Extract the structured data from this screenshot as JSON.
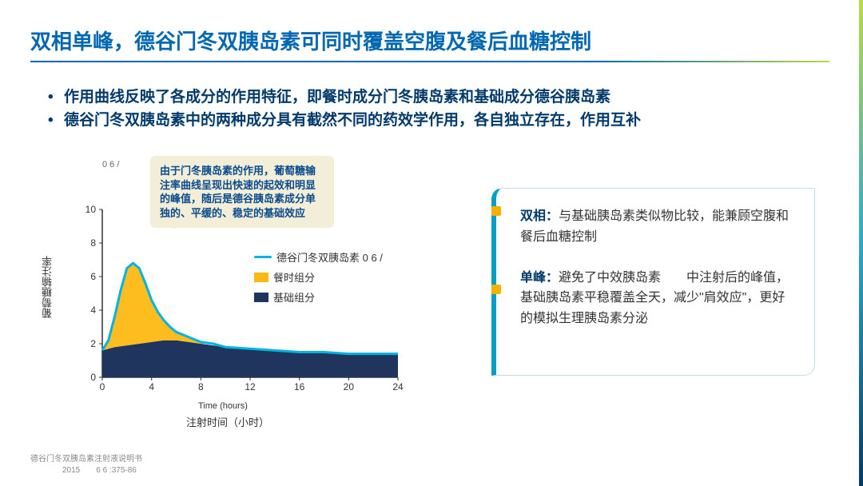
{
  "title": "双相单峰，德谷门冬双胰岛素可同时覆盖空腹及餐后血糖控制",
  "bullets": [
    "作用曲线反映了各成分的作用特征，即餐时成分门冬胰岛素和基础成分德谷胰岛素",
    "德谷门冬双胰岛素中的两种成分具有截然不同的药效学作用，各自独立存在，作用互补"
  ],
  "chart": {
    "type": "area",
    "top_label": "0 6  /",
    "y_label": "葡萄糖输注率",
    "x_label_en": "Time (hours)",
    "x_label_cn": "注射时间（小时）",
    "x_ticks": [
      0,
      4,
      8,
      12,
      16,
      20,
      24
    ],
    "y_ticks": [
      0,
      2,
      4,
      6,
      8,
      10
    ],
    "xlim": [
      0,
      24
    ],
    "ylim": [
      0,
      10
    ],
    "basal": {
      "color": "#1f355e",
      "points": [
        [
          0,
          1.6
        ],
        [
          1,
          1.8
        ],
        [
          2,
          1.9
        ],
        [
          3,
          2.0
        ],
        [
          4,
          2.1
        ],
        [
          5,
          2.2
        ],
        [
          6,
          2.2
        ],
        [
          7,
          2.1
        ],
        [
          8,
          2.0
        ],
        [
          10,
          1.8
        ],
        [
          12,
          1.7
        ],
        [
          14,
          1.6
        ],
        [
          16,
          1.5
        ],
        [
          18,
          1.5
        ],
        [
          20,
          1.4
        ],
        [
          22,
          1.4
        ],
        [
          24,
          1.4
        ]
      ]
    },
    "prandial": {
      "color": "#fdb913",
      "points": [
        [
          0,
          1.6
        ],
        [
          0.5,
          2.2
        ],
        [
          1,
          3.6
        ],
        [
          1.5,
          5.2
        ],
        [
          2,
          6.5
        ],
        [
          2.5,
          6.8
        ],
        [
          3,
          6.5
        ],
        [
          3.5,
          5.6
        ],
        [
          4,
          4.6
        ],
        [
          4.5,
          3.9
        ],
        [
          5,
          3.4
        ],
        [
          5.5,
          3.0
        ],
        [
          6,
          2.7
        ],
        [
          7,
          2.4
        ],
        [
          8,
          2.1
        ],
        [
          9,
          2.0
        ]
      ]
    },
    "total_line": {
      "color": "#00b3e3",
      "width": 3
    },
    "axis_color": "#333333",
    "tick_fontsize": 12,
    "callout": "由于门冬胰岛素的作用，葡萄糖输注率曲线呈现出快速的起效和明显的峰值，随后是德谷胰岛素成分单独的、平缓的、稳定的基础效应",
    "legend": {
      "line_label": "德谷门冬双胰岛素 0 6    /",
      "prandial_label": "餐时组分",
      "basal_label": "基础组分"
    }
  },
  "right_box": {
    "p1_lead": "双相：",
    "p1_text": "与基础胰岛素类似物比较，能兼顾空腹和餐后血糖控制",
    "p2_lead": "单峰：",
    "p2_text": "避免了中效胰岛素　　中注射后的峰值，基础胰岛素平稳覆盖全天，减少\"肩效应\"，更好的模拟生理胰岛素分泌"
  },
  "footer": {
    "line1": "德谷门冬双胰岛素注射液说明书",
    "line2": "　　　　2015　　6 6 :375-86"
  },
  "colors": {
    "brand_blue": "#0067b1",
    "dark_blue": "#003a6b",
    "cyan": "#00a0c6",
    "line_cyan": "#00b3e3",
    "orange": "#fdb913",
    "navy": "#1f355e",
    "callout_bg": "#f3eed7"
  }
}
